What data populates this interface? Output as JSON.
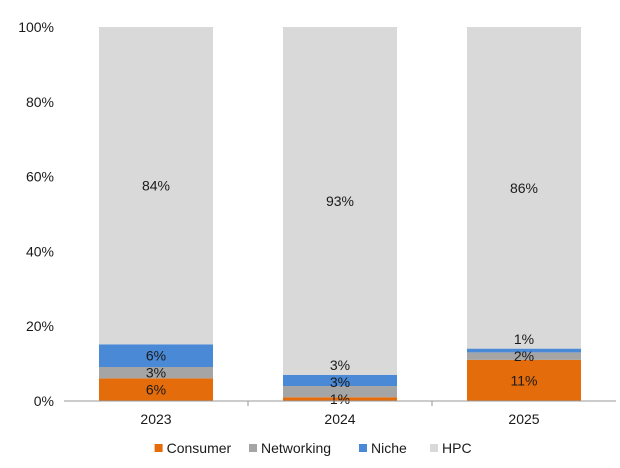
{
  "chart_data": {
    "type": "bar",
    "stacked": true,
    "percent_stacked": true,
    "title": "",
    "xlabel": "",
    "ylabel": "",
    "ylim": [
      0,
      100
    ],
    "yticks": [
      "0%",
      "20%",
      "40%",
      "60%",
      "80%",
      "100%"
    ],
    "ytick_values": [
      0,
      20,
      40,
      60,
      80,
      100
    ],
    "grid": false,
    "legend_position": "bottom",
    "categories": [
      "2023",
      "2024",
      "2025"
    ],
    "series": [
      {
        "name": "Consumer",
        "color": "#E46C0A",
        "values": [
          6,
          1,
          11
        ],
        "labels": [
          "6%",
          "1%",
          "11%"
        ]
      },
      {
        "name": "Networking",
        "color": "#A5A5A5",
        "values": [
          3,
          3,
          2
        ],
        "labels": [
          "3%",
          "3%",
          "2%"
        ]
      },
      {
        "name": "Niche",
        "color": "#4A89D6",
        "values": [
          6,
          3,
          1
        ],
        "labels": [
          "6%",
          "3%",
          "1%"
        ]
      },
      {
        "name": "HPC",
        "color": "#D9D9D9",
        "values": [
          84,
          93,
          86
        ],
        "labels": [
          "84%",
          "93%",
          "86%"
        ]
      }
    ]
  }
}
